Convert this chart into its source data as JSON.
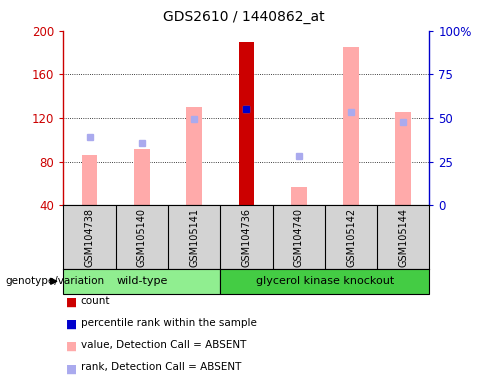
{
  "title": "GDS2610 / 1440862_at",
  "samples": [
    "GSM104738",
    "GSM105140",
    "GSM105141",
    "GSM104736",
    "GSM104740",
    "GSM105142",
    "GSM105144"
  ],
  "ylim_left": [
    40,
    200
  ],
  "ylim_right": [
    0,
    100
  ],
  "yticks_left": [
    40,
    80,
    120,
    160,
    200
  ],
  "yticks_right": [
    0,
    25,
    50,
    75,
    100
  ],
  "pink_bar_values": [
    86,
    92,
    130,
    190,
    57,
    185,
    126
  ],
  "light_blue_dot_values": [
    103,
    97,
    119,
    128,
    85,
    126,
    116
  ],
  "dark_red_bar_sample": 3,
  "dark_red_bar_value": 190,
  "blue_dot_sample": 3,
  "blue_dot_value": 128,
  "pink_color": "#ffaaaa",
  "dark_red_color": "#cc0000",
  "blue_dot_color": "#0000cc",
  "light_blue_dot_color": "#aaaaee",
  "bg_color": "#d3d3d3",
  "plot_bg": "#ffffff",
  "left_axis_color": "#cc0000",
  "right_axis_color": "#0000cc",
  "wt_color": "#90ee90",
  "gk_color": "#44cc44",
  "legend_items": [
    "count",
    "percentile rank within the sample",
    "value, Detection Call = ABSENT",
    "rank, Detection Call = ABSENT"
  ],
  "legend_colors": [
    "#cc0000",
    "#0000cc",
    "#ffaaaa",
    "#aaaaee"
  ],
  "bar_width": 0.3
}
